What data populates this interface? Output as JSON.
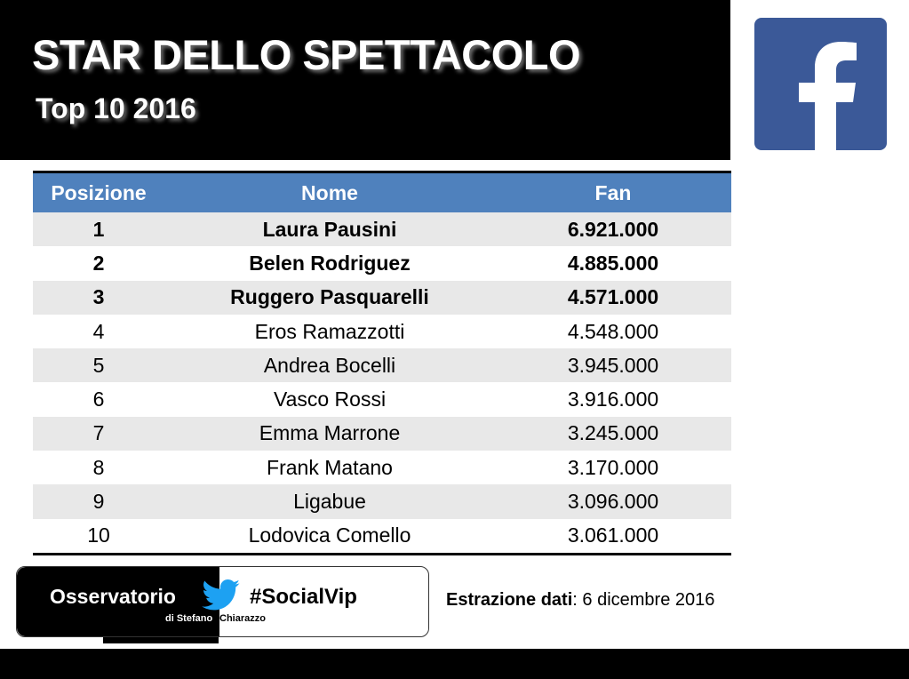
{
  "header": {
    "title": "STAR DELLO SPETTACOLO",
    "subtitle": "Top 10 2016"
  },
  "logo": {
    "icon": "facebook-icon",
    "color": "#3b5998"
  },
  "table": {
    "headers": {
      "position": "Posizione",
      "name": "Nome",
      "fans": "Fan"
    },
    "header_color": "#4f81bd",
    "rows": [
      {
        "position": "1",
        "name": "Laura Pausini",
        "fans": "6.921.000"
      },
      {
        "position": "2",
        "name": "Belen Rodriguez",
        "fans": "4.885.000"
      },
      {
        "position": "3",
        "name": "Ruggero Pasquarelli",
        "fans": "4.571.000"
      },
      {
        "position": "4",
        "name": "Eros Ramazzotti",
        "fans": "4.548.000"
      },
      {
        "position": "5",
        "name": "Andrea Bocelli",
        "fans": "3.945.000"
      },
      {
        "position": "6",
        "name": "Vasco Rossi",
        "fans": "3.916.000"
      },
      {
        "position": "7",
        "name": "Emma Marrone",
        "fans": "3.245.000"
      },
      {
        "position": "8",
        "name": "Frank Matano",
        "fans": "3.170.000"
      },
      {
        "position": "9",
        "name": "Ligabue",
        "fans": "3.096.000"
      },
      {
        "position": "10",
        "name": "Lodovica Comello",
        "fans": "3.061.000"
      }
    ]
  },
  "brand": {
    "name": "Osservatorio",
    "byline_part1": "di Stefano",
    "byline_part2": "Chiarazzo",
    "hashtag": "#SocialVip",
    "icon": "twitter-bird-icon"
  },
  "footer": {
    "extraction_label": "Estrazione dati",
    "extraction_sep": ":",
    "extraction_date": " 6 dicembre 2016"
  }
}
